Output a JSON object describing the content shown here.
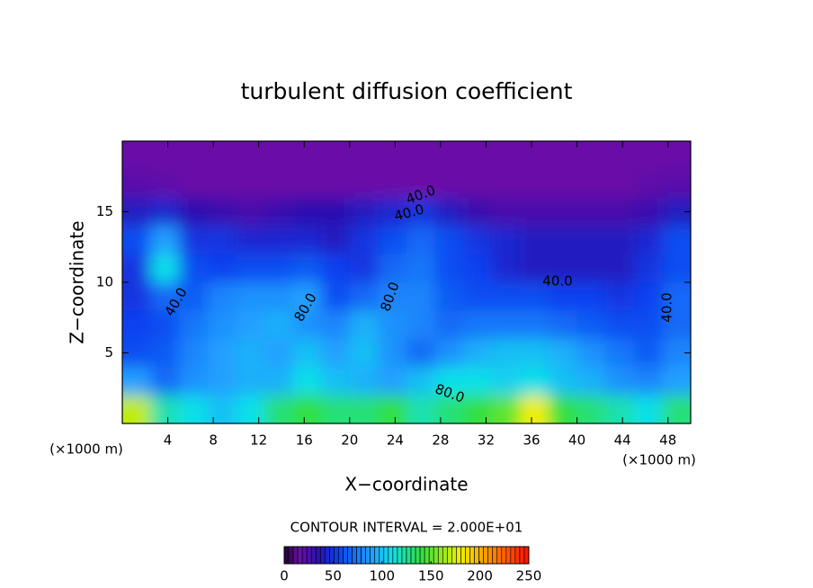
{
  "chart_data": {
    "type": "contour",
    "title": "turbulent diffusion coefficient",
    "x_label": "X−coordinate",
    "y_label": "Z−coordinate",
    "x_unit": "(×1000 m)",
    "y_unit": "(×1000 m)",
    "contour_interval_text": "CONTOUR INTERVAL = 2.000E+01",
    "xlim": [
      0,
      50
    ],
    "ylim": [
      0,
      20
    ],
    "xticks": [
      4,
      8,
      12,
      16,
      20,
      24,
      28,
      32,
      36,
      40,
      44,
      48
    ],
    "yticks": [
      5,
      10,
      15
    ],
    "x": [
      1.25,
      3.75,
      6.25,
      8.75,
      11.25,
      13.75,
      16.25,
      18.75,
      21.25,
      23.75,
      26.25,
      28.75,
      31.25,
      33.75,
      36.25,
      38.75,
      41.25,
      43.75,
      46.25,
      48.75
    ],
    "y": [
      19,
      17,
      15,
      13,
      11,
      9,
      7,
      5,
      3,
      1
    ],
    "z": [
      [
        15,
        15,
        15,
        15,
        15,
        15,
        15,
        15,
        15,
        15,
        15,
        15,
        15,
        15,
        15,
        15,
        15,
        15,
        15,
        15
      ],
      [
        20,
        18,
        15,
        15,
        15,
        15,
        15,
        15,
        15,
        15,
        15,
        15,
        15,
        15,
        15,
        15,
        15,
        15,
        18,
        20
      ],
      [
        40,
        45,
        35,
        30,
        25,
        30,
        35,
        35,
        40,
        45,
        50,
        40,
        30,
        25,
        25,
        25,
        25,
        25,
        30,
        40
      ],
      [
        60,
        90,
        50,
        50,
        45,
        45,
        45,
        40,
        50,
        60,
        70,
        60,
        50,
        45,
        40,
        40,
        40,
        40,
        45,
        60
      ],
      [
        50,
        110,
        60,
        55,
        60,
        60,
        65,
        55,
        50,
        70,
        75,
        60,
        55,
        45,
        40,
        40,
        40,
        40,
        50,
        60
      ],
      [
        50,
        70,
        65,
        80,
        85,
        85,
        90,
        60,
        70,
        80,
        80,
        65,
        60,
        60,
        60,
        55,
        55,
        50,
        55,
        70
      ],
      [
        55,
        60,
        75,
        85,
        90,
        95,
        85,
        80,
        95,
        85,
        80,
        70,
        75,
        75,
        75,
        70,
        65,
        60,
        60,
        70
      ],
      [
        60,
        65,
        80,
        90,
        95,
        90,
        100,
        90,
        100,
        85,
        70,
        85,
        95,
        100,
        100,
        95,
        85,
        75,
        65,
        80
      ],
      [
        90,
        70,
        85,
        90,
        95,
        95,
        110,
        100,
        95,
        90,
        100,
        110,
        110,
        105,
        110,
        100,
        95,
        85,
        80,
        90
      ],
      [
        170,
        120,
        110,
        100,
        110,
        130,
        140,
        130,
        130,
        140,
        120,
        130,
        140,
        150,
        180,
        140,
        130,
        120,
        110,
        130
      ]
    ],
    "contour_labels": [
      {
        "value": 40,
        "label": "40.0"
      },
      {
        "value": 40,
        "label": "40.0"
      },
      {
        "value": 40,
        "label": "40.0"
      },
      {
        "value": 40,
        "label": "40.0"
      },
      {
        "value": 40,
        "label": "40.0"
      },
      {
        "value": 80,
        "label": "80.0"
      },
      {
        "value": 80,
        "label": "80.0"
      },
      {
        "value": 80,
        "label": "80.0"
      }
    ],
    "clim": [
      0,
      250
    ],
    "colorbar_ticks": [
      0,
      50,
      100,
      150,
      200,
      250
    ],
    "colorscale": [
      {
        "value": 0,
        "color": "#200030"
      },
      {
        "value": 15,
        "color": "#6a10a8"
      },
      {
        "value": 35,
        "color": "#2a10b0"
      },
      {
        "value": 55,
        "color": "#0a40f0"
      },
      {
        "value": 90,
        "color": "#20a0ff"
      },
      {
        "value": 110,
        "color": "#10e0e8"
      },
      {
        "value": 140,
        "color": "#30e040"
      },
      {
        "value": 180,
        "color": "#f0f000"
      },
      {
        "value": 220,
        "color": "#ff7000"
      },
      {
        "value": 250,
        "color": "#ff1000"
      }
    ]
  }
}
